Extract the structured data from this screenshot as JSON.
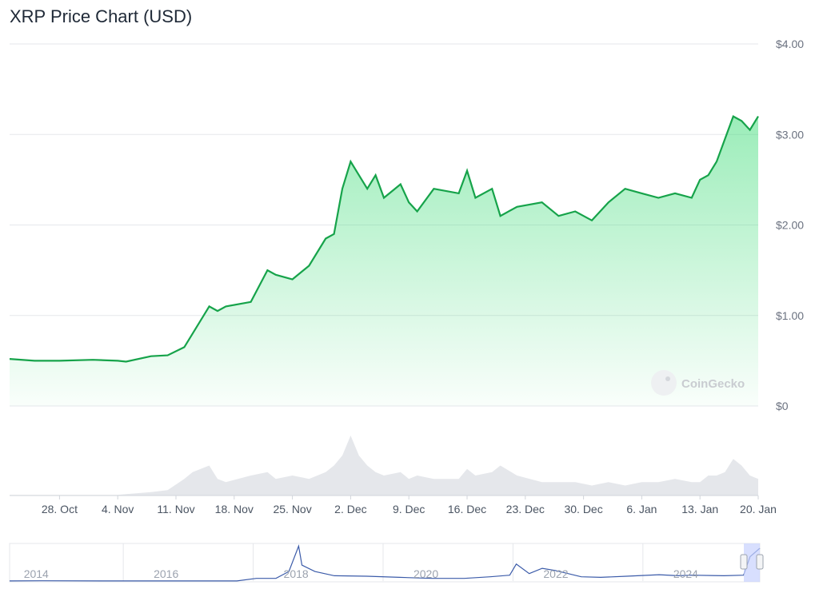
{
  "title": "XRP Price Chart (USD)",
  "watermark": "CoinGecko",
  "colors": {
    "line": "#16a34a",
    "area_top": "#4ade80",
    "volume": "#e5e7eb",
    "navigator_line": "#3b5ba9",
    "navigator_mask": "#c7d2fe",
    "grid": "#e5e7eb"
  },
  "chart_data": {
    "type": "area",
    "title": "XRP Price Chart (USD)",
    "xlabel": "",
    "ylabel": "",
    "ylim": [
      0,
      4
    ],
    "y_ticks": [
      "$0",
      "$1.00",
      "$2.00",
      "$3.00",
      "$4.00"
    ],
    "x_ticks": [
      "28. Oct",
      "4. Nov",
      "11. Nov",
      "18. Nov",
      "25. Nov",
      "2. Dec",
      "9. Dec",
      "16. Dec",
      "23. Dec",
      "30. Dec",
      "6. Jan",
      "13. Jan",
      "20. Jan"
    ],
    "grid": true,
    "series": [
      {
        "values_note": "",
        "x": [
          "2024-10-22",
          "2024-10-25",
          "2024-10-28",
          "2024-11-01",
          "2024-11-04",
          "2024-11-05",
          "2024-11-08",
          "2024-11-10",
          "2024-11-12",
          "2024-11-13",
          "2024-11-15",
          "2024-11-16",
          "2024-11-17",
          "2024-11-20",
          "2024-11-22",
          "2024-11-23",
          "2024-11-25",
          "2024-11-27",
          "2024-11-29",
          "2024-11-30",
          "2024-12-01",
          "2024-12-02",
          "2024-12-03",
          "2024-12-04",
          "2024-12-05",
          "2024-12-06",
          "2024-12-08",
          "2024-12-09",
          "2024-12-10",
          "2024-12-12",
          "2024-12-15",
          "2024-12-16",
          "2024-12-17",
          "2024-12-19",
          "2024-12-20",
          "2024-12-22",
          "2024-12-25",
          "2024-12-27",
          "2024-12-29",
          "2024-12-31",
          "2025-01-02",
          "2025-01-04",
          "2025-01-06",
          "2025-01-08",
          "2025-01-10",
          "2025-01-12",
          "2025-01-13",
          "2025-01-14",
          "2025-01-15",
          "2025-01-16",
          "2025-01-17",
          "2025-01-18",
          "2025-01-19",
          "2025-01-20"
        ],
        "values": [
          0.52,
          0.5,
          0.5,
          0.51,
          0.5,
          0.49,
          0.55,
          0.56,
          0.65,
          0.8,
          1.1,
          1.05,
          1.1,
          1.15,
          1.5,
          1.45,
          1.4,
          1.55,
          1.85,
          1.9,
          2.4,
          2.7,
          2.55,
          2.4,
          2.55,
          2.3,
          2.45,
          2.25,
          2.15,
          2.4,
          2.35,
          2.6,
          2.3,
          2.4,
          2.1,
          2.2,
          2.25,
          2.1,
          2.15,
          2.05,
          2.25,
          2.4,
          2.35,
          2.3,
          2.35,
          2.3,
          2.5,
          2.55,
          2.7,
          2.95,
          3.2,
          3.15,
          3.05,
          3.2
        ]
      }
    ],
    "volume": [
      0.01,
      0.01,
      0.01,
      0.01,
      0.01,
      0.02,
      0.05,
      0.08,
      0.25,
      0.35,
      0.45,
      0.25,
      0.2,
      0.3,
      0.35,
      0.25,
      0.3,
      0.25,
      0.35,
      0.45,
      0.6,
      0.9,
      0.6,
      0.45,
      0.35,
      0.3,
      0.35,
      0.25,
      0.3,
      0.25,
      0.25,
      0.4,
      0.3,
      0.35,
      0.45,
      0.3,
      0.2,
      0.2,
      0.2,
      0.15,
      0.2,
      0.15,
      0.2,
      0.2,
      0.25,
      0.2,
      0.2,
      0.3,
      0.3,
      0.35,
      0.55,
      0.45,
      0.3,
      0.25
    ],
    "navigator": {
      "x_ticks": [
        "2014",
        "2016",
        "2018",
        "2020",
        "2022",
        "2024"
      ],
      "x": [
        2013.5,
        2014,
        2015,
        2016,
        2017,
        2017.3,
        2017.6,
        2017.8,
        2017.95,
        2018.0,
        2018.2,
        2018.5,
        2019,
        2019.5,
        2020,
        2020.5,
        2020.9,
        2021.2,
        2021.3,
        2021.5,
        2021.7,
        2021.9,
        2022.3,
        2022.6,
        2023,
        2023.5,
        2023.8,
        2024,
        2024.5,
        2024.8,
        2024.9,
        2025.05
      ],
      "values": [
        0.01,
        0.02,
        0.01,
        0.01,
        0.01,
        0.25,
        0.25,
        0.9,
        3.3,
        1.5,
        0.9,
        0.5,
        0.45,
        0.35,
        0.25,
        0.25,
        0.4,
        0.55,
        1.6,
        0.7,
        1.2,
        1.0,
        0.4,
        0.35,
        0.45,
        0.6,
        0.5,
        0.55,
        0.5,
        0.55,
        2.3,
        3.1
      ]
    }
  }
}
